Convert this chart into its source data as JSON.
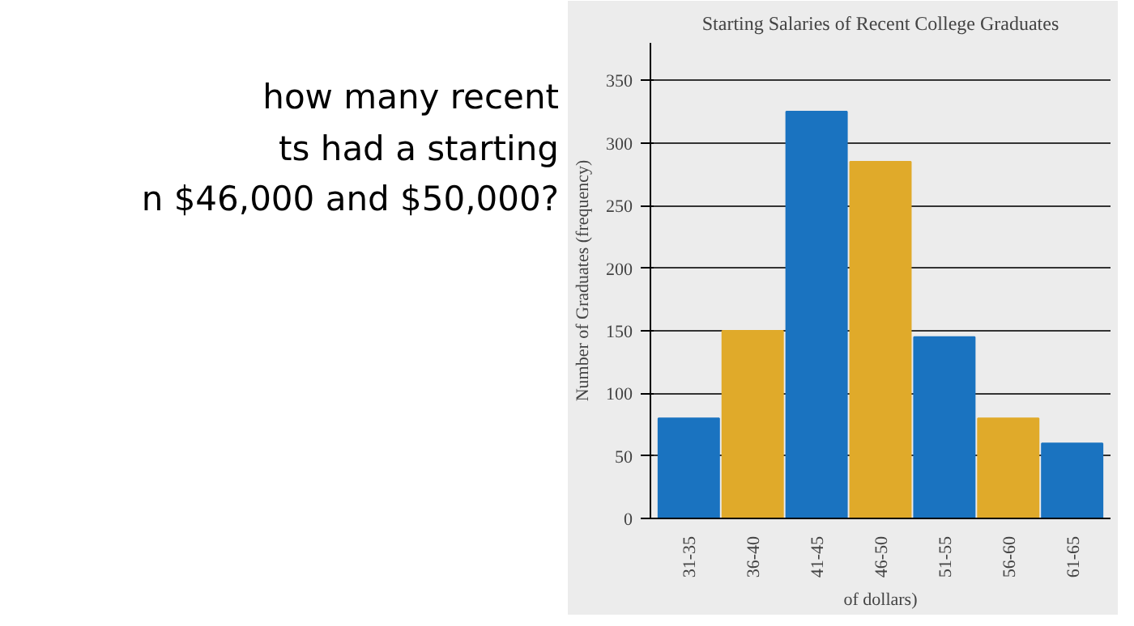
{
  "chart_data": {
    "type": "bar",
    "title": "Starting Salaries of Recent College Graduates",
    "annotations": [
      "how many recent",
      "ts had a starting",
      "n $46,000 and $50,000?"
    ],
    "ylabel": "Number of Graduates (frequency)",
    "xlabel": "of dollars)",
    "categories": [
      "31-35",
      "36-40",
      "41-45",
      "46-50",
      "51-55",
      "56-60",
      "61-65"
    ],
    "values": [
      80,
      150,
      325,
      285,
      145,
      80,
      60
    ],
    "colors": [
      "#1a73c0",
      "#e0aa2a",
      "#1a73c0",
      "#e0aa2a",
      "#1a73c0",
      "#e0aa2a",
      "#1a73c0"
    ],
    "ylim": [
      0,
      380
    ],
    "yticks": [
      0,
      50,
      100,
      150,
      200,
      250,
      300,
      350
    ],
    "grid": "y"
  }
}
